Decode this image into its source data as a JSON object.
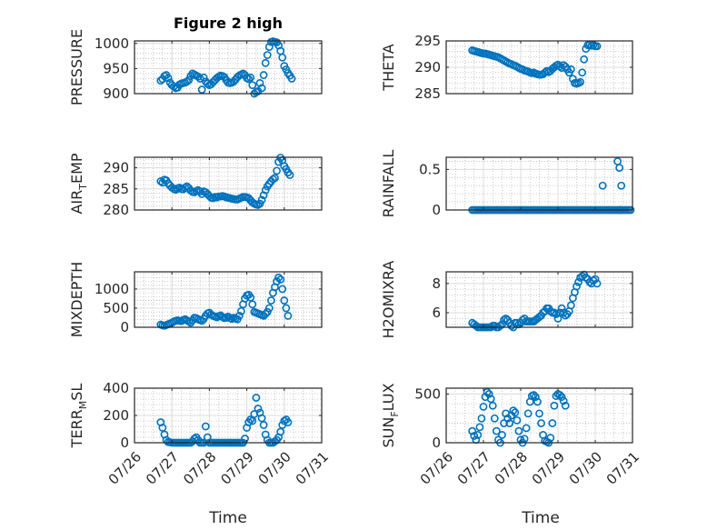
{
  "figure": {
    "title": "Figure 2 high",
    "xlabel": "Time"
  },
  "colors": {
    "marker": "#0072BD",
    "axis": "#262626",
    "grid": "#DCDCDC"
  },
  "xaxis": {
    "range": [
      "07/26",
      "07/31"
    ],
    "ticks": [
      "07/26",
      "07/27",
      "07/28",
      "07/29",
      "07/30",
      "07/31"
    ]
  },
  "chart_data": [
    {
      "type": "scatter",
      "ylabel": "PRESSURE",
      "ylabel_sub": "",
      "ylabel_tail": "",
      "ylim": [
        900,
        1005
      ],
      "yticks": [
        900,
        950,
        1000
      ],
      "ytick_labels": [
        "900",
        "950",
        "1000"
      ],
      "grid": true,
      "title": "Figure 2 high",
      "x": [
        26.7,
        26.75,
        26.8,
        26.85,
        26.9,
        26.95,
        27.0,
        27.05,
        27.1,
        27.15,
        27.2,
        27.25,
        27.3,
        27.35,
        27.4,
        27.45,
        27.5,
        27.55,
        27.6,
        27.65,
        27.7,
        27.75,
        27.8,
        27.85,
        27.9,
        27.95,
        28.0,
        28.05,
        28.1,
        28.15,
        28.2,
        28.25,
        28.3,
        28.35,
        28.4,
        28.45,
        28.5,
        28.55,
        28.6,
        28.65,
        28.7,
        28.75,
        28.8,
        28.85,
        28.9,
        28.95,
        29.0,
        29.05,
        29.1,
        29.15,
        29.2,
        29.25,
        29.3,
        29.35,
        29.4,
        29.45,
        29.5,
        29.55,
        29.6,
        29.65,
        29.7,
        29.75,
        29.8,
        29.85,
        29.9,
        29.95,
        30.0,
        30.05,
        30.1,
        30.15,
        30.2,
        30.25,
        30.3,
        30.35,
        30.4,
        30.45,
        30.5
      ],
      "y": [
        926,
        929,
        935,
        937,
        931,
        922,
        917,
        914,
        911,
        912,
        918,
        920,
        921,
        922,
        924,
        927,
        935,
        940,
        938,
        936,
        934,
        930,
        908,
        932,
        924,
        920,
        917,
        919,
        923,
        927,
        931,
        934,
        936,
        935,
        933,
        927,
        922,
        921,
        922,
        924,
        928,
        933,
        936,
        938,
        940,
        937,
        931,
        929,
        932,
        917,
        900,
        903,
        905,
        921,
        911,
        937,
        961,
        977,
        993,
        1003,
        1004,
        1003,
        1002,
        996,
        985,
        972,
        955,
        948,
        941,
        936,
        930,
        null,
        null,
        null,
        null,
        null,
        null
      ]
    },
    {
      "type": "scatter",
      "ylabel": "THETA",
      "ylabel_sub": "",
      "ylabel_tail": "",
      "ylim": [
        285,
        295
      ],
      "yticks": [
        285,
        290,
        295
      ],
      "ytick_labels": [
        "285",
        "290",
        "295"
      ],
      "grid": true,
      "x": [
        26.7,
        26.75,
        26.8,
        26.85,
        26.9,
        26.95,
        27.0,
        27.05,
        27.1,
        27.15,
        27.2,
        27.25,
        27.3,
        27.35,
        27.4,
        27.45,
        27.5,
        27.55,
        27.6,
        27.65,
        27.7,
        27.75,
        27.8,
        27.85,
        27.9,
        27.95,
        28.0,
        28.05,
        28.1,
        28.15,
        28.2,
        28.25,
        28.3,
        28.35,
        28.4,
        28.45,
        28.5,
        28.55,
        28.6,
        28.65,
        28.7,
        28.75,
        28.8,
        28.85,
        28.9,
        28.95,
        29.0,
        29.05,
        29.1,
        29.15,
        29.2,
        29.25,
        29.3,
        29.35,
        29.4,
        29.45,
        29.5,
        29.55,
        29.6,
        29.65,
        29.7,
        29.75,
        29.8,
        29.85,
        29.9,
        29.95,
        30.0,
        30.05,
        30.1,
        30.15
      ],
      "y": [
        293.2,
        293.1,
        293.0,
        292.9,
        292.8,
        292.7,
        292.6,
        292.6,
        292.5,
        292.4,
        292.3,
        292.2,
        292.1,
        292.0,
        291.9,
        291.7,
        291.5,
        291.3,
        291.1,
        290.9,
        290.7,
        290.6,
        290.4,
        290.3,
        290.1,
        289.9,
        289.7,
        289.6,
        289.4,
        289.3,
        289.2,
        289.0,
        288.9,
        289.0,
        288.8,
        288.7,
        288.6,
        288.6,
        288.7,
        289.0,
        289.3,
        289.1,
        289.3,
        289.7,
        290.0,
        290.3,
        290.5,
        290.2,
        289.9,
        290.4,
        290.1,
        289.6,
        289.0,
        289.6,
        287.8,
        287.0,
        286.9,
        287.0,
        287.2,
        289.0,
        291.5,
        293.5,
        294.2,
        294.3,
        294.1,
        294.2,
        294.0,
        294.0,
        null,
        null
      ]
    },
    {
      "type": "scatter",
      "ylabel": "AIR",
      "ylabel_sub": "T",
      "ylabel_tail": "EMP",
      "ylim": [
        280,
        292.5
      ],
      "yticks": [
        280,
        285,
        290
      ],
      "ytick_labels": [
        "280",
        "285",
        "290"
      ],
      "grid": true,
      "x": [
        26.7,
        26.75,
        26.8,
        26.85,
        26.9,
        26.95,
        27.0,
        27.05,
        27.1,
        27.15,
        27.2,
        27.25,
        27.3,
        27.35,
        27.4,
        27.45,
        27.5,
        27.55,
        27.6,
        27.65,
        27.7,
        27.75,
        27.8,
        27.85,
        27.9,
        27.95,
        28.0,
        28.05,
        28.1,
        28.15,
        28.2,
        28.25,
        28.3,
        28.35,
        28.4,
        28.45,
        28.5,
        28.55,
        28.6,
        28.65,
        28.7,
        28.75,
        28.8,
        28.85,
        28.9,
        28.95,
        29.0,
        29.05,
        29.1,
        29.15,
        29.2,
        29.25,
        29.3,
        29.35,
        29.4,
        29.45,
        29.5,
        29.55,
        29.6,
        29.65,
        29.7,
        29.75,
        29.8,
        29.85,
        29.9,
        29.95,
        30.0,
        30.05,
        30.1,
        30.15,
        30.2,
        30.25,
        30.3,
        30.35,
        30.4
      ],
      "y": [
        286.8,
        286.5,
        287.2,
        287.0,
        286.3,
        285.8,
        285.3,
        285.0,
        284.8,
        285.1,
        285.3,
        285.0,
        284.9,
        285.3,
        285.6,
        285.2,
        284.6,
        284.3,
        284.2,
        284.5,
        284.7,
        284.4,
        283.8,
        284.4,
        284.2,
        283.8,
        283.3,
        282.9,
        282.8,
        283.1,
        283.0,
        283.2,
        283.2,
        283.3,
        283.2,
        283.0,
        282.9,
        282.8,
        282.7,
        282.6,
        282.5,
        282.5,
        282.7,
        282.9,
        283.1,
        283.1,
        283.0,
        282.8,
        282.3,
        281.8,
        281.5,
        281.3,
        281.2,
        281.5,
        282.4,
        283.5,
        284.7,
        285.6,
        286.2,
        286.8,
        287.3,
        287.6,
        289.3,
        291.4,
        292.4,
        291.8,
        290.4,
        289.7,
        288.9,
        288.3,
        null,
        null,
        null,
        null,
        null
      ]
    },
    {
      "type": "scatter",
      "ylabel": "RAINFALL",
      "ylabel_sub": "",
      "ylabel_tail": "",
      "ylim": [
        0,
        0.65
      ],
      "yticks": [
        0,
        0.5
      ],
      "ytick_labels": [
        "0",
        "0.5"
      ],
      "grid": true,
      "x": [
        26.7,
        26.75,
        26.8,
        26.85,
        26.9,
        26.95,
        27.0,
        27.05,
        27.1,
        27.15,
        27.2,
        27.25,
        27.3,
        27.35,
        27.4,
        27.45,
        27.5,
        27.55,
        27.6,
        27.65,
        27.7,
        27.75,
        27.8,
        27.85,
        27.9,
        27.95,
        28.0,
        28.05,
        28.1,
        28.15,
        28.2,
        28.25,
        28.3,
        28.35,
        28.4,
        28.45,
        28.5,
        28.55,
        28.6,
        28.65,
        28.7,
        28.75,
        28.8,
        28.85,
        28.9,
        28.95,
        29.0,
        29.05,
        29.1,
        29.15,
        29.2,
        29.25,
        29.3,
        29.35,
        29.4,
        29.45,
        29.5,
        29.55,
        29.6,
        29.65,
        29.7,
        29.75,
        29.8,
        29.85,
        29.9,
        29.95,
        30.0,
        30.05,
        30.1,
        30.15,
        30.2,
        30.25,
        30.3,
        30.35,
        30.4,
        30.45,
        30.5,
        30.55,
        30.6,
        30.65,
        30.7,
        30.75,
        30.8,
        30.85,
        30.9,
        30.95,
        30.2,
        30.6,
        30.65,
        30.7,
        30.68
      ],
      "y": [
        0,
        0,
        0,
        0,
        0,
        0,
        0,
        0,
        0,
        0,
        0,
        0,
        0,
        0,
        0,
        0,
        0,
        0,
        0,
        0,
        0,
        0,
        0,
        0,
        0,
        0,
        0,
        0,
        0,
        0,
        0,
        0,
        0,
        0,
        0,
        0,
        0,
        0,
        0,
        0,
        0,
        0,
        0,
        0,
        0,
        0,
        0,
        0,
        0,
        0,
        0,
        0,
        0,
        0,
        0,
        0,
        0,
        0,
        0,
        0,
        0,
        0,
        0,
        0,
        0,
        0,
        0,
        0,
        0,
        0,
        0,
        0,
        0,
        0,
        0,
        0,
        0,
        0,
        0,
        0,
        0,
        0,
        0,
        0,
        0,
        0,
        0.3,
        0.6,
        0.52,
        0.3,
        0
      ]
    },
    {
      "type": "scatter",
      "ylabel": "MIXDEPTH",
      "ylabel_sub": "",
      "ylabel_tail": "",
      "ylim": [
        0,
        1450
      ],
      "yticks": [
        0,
        500,
        1000
      ],
      "ytick_labels": [
        "0",
        "500",
        "1000"
      ],
      "grid": true,
      "x": [
        26.7,
        26.75,
        26.8,
        26.85,
        26.9,
        26.95,
        27.0,
        27.05,
        27.1,
        27.15,
        27.2,
        27.25,
        27.3,
        27.35,
        27.4,
        27.45,
        27.5,
        27.55,
        27.6,
        27.65,
        27.7,
        27.75,
        27.8,
        27.85,
        27.9,
        27.95,
        28.0,
        28.05,
        28.1,
        28.15,
        28.2,
        28.25,
        28.3,
        28.35,
        28.4,
        28.45,
        28.5,
        28.55,
        28.6,
        28.65,
        28.7,
        28.75,
        28.8,
        28.85,
        28.9,
        28.95,
        29.0,
        29.05,
        29.1,
        29.15,
        29.2,
        29.25,
        29.3,
        29.35,
        29.4,
        29.45,
        29.5,
        29.55,
        29.6,
        29.65,
        29.7,
        29.75,
        29.8,
        29.85,
        29.9,
        29.95,
        30.0,
        30.05,
        30.1,
        30.15
      ],
      "y": [
        70,
        50,
        40,
        60,
        80,
        100,
        120,
        150,
        170,
        180,
        170,
        160,
        190,
        210,
        180,
        150,
        120,
        180,
        250,
        240,
        210,
        190,
        170,
        220,
        300,
        360,
        380,
        330,
        300,
        280,
        260,
        290,
        310,
        270,
        240,
        250,
        280,
        240,
        220,
        250,
        230,
        210,
        300,
        420,
        600,
        750,
        830,
        850,
        780,
        600,
        400,
        380,
        360,
        340,
        320,
        300,
        350,
        400,
        500,
        700,
        900,
        1050,
        1200,
        1300,
        1250,
        1000,
        700,
        500,
        300,
        null
      ]
    },
    {
      "type": "scatter",
      "ylabel": "H2OMIXRA",
      "ylabel_sub": "",
      "ylabel_tail": "",
      "ylim": [
        5,
        8.8
      ],
      "yticks": [
        6,
        8
      ],
      "ytick_labels": [
        "6",
        "8"
      ],
      "grid": true,
      "x": [
        26.7,
        26.75,
        26.8,
        26.85,
        26.9,
        26.95,
        27.0,
        27.05,
        27.1,
        27.15,
        27.2,
        27.25,
        27.3,
        27.35,
        27.4,
        27.45,
        27.5,
        27.55,
        27.6,
        27.65,
        27.7,
        27.75,
        27.8,
        27.85,
        27.9,
        27.95,
        28.0,
        28.05,
        28.1,
        28.15,
        28.2,
        28.25,
        28.3,
        28.35,
        28.4,
        28.45,
        28.5,
        28.55,
        28.6,
        28.65,
        28.7,
        28.75,
        28.8,
        28.85,
        28.9,
        28.95,
        29.0,
        29.05,
        29.1,
        29.15,
        29.2,
        29.25,
        29.3,
        29.35,
        29.4,
        29.45,
        29.5,
        29.55,
        29.6,
        29.65,
        29.7,
        29.75,
        29.8,
        29.85,
        29.9,
        29.95,
        30.0,
        30.05,
        30.1,
        30.15
      ],
      "y": [
        5.3,
        5.2,
        5.1,
        5.0,
        5.0,
        5.0,
        5.0,
        5.0,
        5.0,
        5.0,
        5.0,
        5.1,
        5.1,
        5.0,
        5.0,
        5.1,
        5.2,
        5.5,
        5.6,
        5.5,
        5.3,
        5.1,
        5.0,
        5.3,
        5.3,
        5.2,
        5.3,
        5.5,
        5.6,
        5.4,
        5.4,
        5.4,
        5.4,
        5.4,
        5.5,
        5.6,
        5.7,
        5.8,
        6.0,
        6.1,
        6.3,
        6.3,
        6.1,
        6.0,
        6.0,
        5.9,
        5.6,
        6.0,
        6.3,
        6.0,
        5.8,
        5.9,
        6.1,
        6.5,
        7.0,
        7.4,
        7.8,
        8.1,
        8.4,
        8.5,
        8.6,
        8.4,
        8.3,
        8.1,
        8.0,
        8.2,
        8.3,
        8.0,
        null,
        null
      ]
    },
    {
      "type": "scatter",
      "ylabel": "TERR",
      "ylabel_sub": "M",
      "ylabel_tail": "SL",
      "ylim": [
        0,
        400
      ],
      "yticks": [
        0,
        200,
        400
      ],
      "ytick_labels": [
        "0",
        "200",
        "400"
      ],
      "grid": true,
      "x": [
        26.7,
        26.75,
        26.8,
        26.85,
        26.9,
        26.95,
        27.0,
        27.05,
        27.1,
        27.15,
        27.2,
        27.25,
        27.3,
        27.35,
        27.4,
        27.45,
        27.5,
        27.55,
        27.6,
        27.65,
        27.7,
        27.75,
        27.8,
        27.85,
        27.9,
        27.95,
        28.0,
        28.05,
        28.1,
        28.15,
        28.2,
        28.25,
        28.3,
        28.35,
        28.4,
        28.45,
        28.5,
        28.55,
        28.6,
        28.65,
        28.7,
        28.75,
        28.8,
        28.85,
        28.9,
        28.95,
        29.0,
        29.05,
        29.1,
        29.15,
        29.2,
        29.25,
        29.3,
        29.35,
        29.4,
        29.45,
        29.5,
        29.55,
        29.6,
        29.65,
        29.7,
        29.75,
        29.8,
        29.85,
        29.9,
        29.95,
        30.0,
        30.05,
        30.1,
        30.15,
        30.2,
        30.25,
        30.3,
        30.35,
        30.4,
        30.45,
        30.5
      ],
      "y": [
        150,
        110,
        60,
        20,
        5,
        3,
        0,
        0,
        0,
        0,
        0,
        0,
        0,
        0,
        0,
        0,
        0,
        10,
        30,
        40,
        20,
        0,
        0,
        0,
        120,
        40,
        0,
        0,
        0,
        0,
        0,
        0,
        0,
        0,
        0,
        0,
        0,
        0,
        0,
        0,
        0,
        0,
        0,
        0,
        0,
        30,
        110,
        150,
        170,
        160,
        210,
        330,
        250,
        220,
        180,
        130,
        60,
        20,
        0,
        0,
        0,
        10,
        20,
        40,
        80,
        130,
        160,
        170,
        150,
        null,
        null,
        null,
        null,
        null,
        null,
        null,
        null
      ]
    },
    {
      "type": "scatter",
      "ylabel": "SUN",
      "ylabel_sub": "F",
      "ylabel_tail": "LUX",
      "ylim": [
        0,
        560
      ],
      "yticks": [
        0,
        500
      ],
      "ytick_labels": [
        "0",
        "500"
      ],
      "grid": true,
      "x": [
        26.7,
        26.75,
        26.8,
        26.85,
        26.9,
        26.95,
        27.0,
        27.05,
        27.1,
        27.15,
        27.2,
        27.25,
        27.3,
        27.35,
        27.4,
        27.45,
        27.5,
        27.55,
        27.6,
        27.65,
        27.7,
        27.75,
        27.8,
        27.85,
        27.9,
        27.95,
        28.0,
        28.05,
        28.1,
        28.15,
        28.2,
        28.25,
        28.3,
        28.35,
        28.4,
        28.45,
        28.5,
        28.55,
        28.6,
        28.65,
        28.7,
        28.75,
        28.8,
        28.85,
        28.9,
        28.95,
        29.0,
        29.05,
        29.1,
        29.15,
        29.2,
        29.25,
        29.3,
        29.35,
        29.4,
        29.45,
        29.5,
        29.55,
        29.6,
        29.65,
        29.7,
        29.75,
        29.8,
        29.85,
        29.9,
        29.95,
        30.0,
        30.05,
        30.1,
        30.15
      ],
      "y": [
        120,
        70,
        30,
        80,
        160,
        250,
        370,
        470,
        520,
        500,
        450,
        380,
        250,
        120,
        30,
        0,
        80,
        200,
        300,
        250,
        200,
        280,
        330,
        310,
        230,
        120,
        30,
        0,
        40,
        150,
        300,
        420,
        480,
        490,
        470,
        420,
        300,
        200,
        80,
        20,
        10,
        0,
        50,
        200,
        380,
        480,
        500,
        490,
        470,
        430,
        380,
        null,
        null,
        null,
        null,
        null,
        null,
        null,
        null,
        null,
        null,
        null,
        null,
        null,
        null,
        null,
        null,
        null,
        null,
        null
      ]
    }
  ]
}
